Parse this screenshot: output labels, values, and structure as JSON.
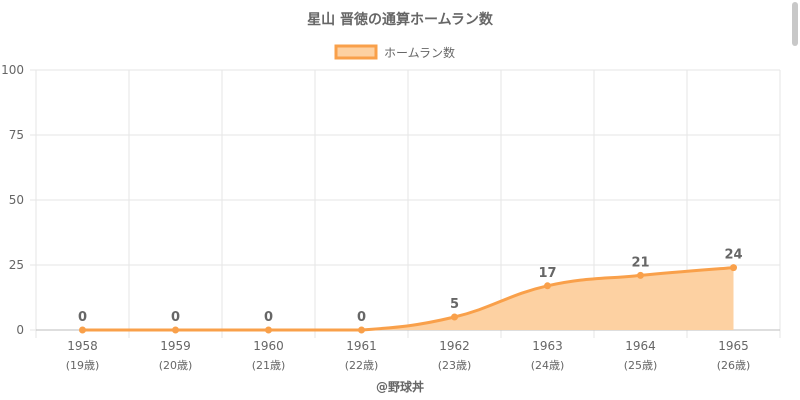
{
  "chart_data": {
    "type": "area",
    "title": "星山 晋徳の通算ホームラン数",
    "legend": {
      "label": "ホームラン数",
      "position": "top"
    },
    "categories": [
      "1958",
      "1959",
      "1960",
      "1961",
      "1962",
      "1963",
      "1964",
      "1965"
    ],
    "category_sublabels": [
      "(19歳)",
      "(20歳)",
      "(21歳)",
      "(22歳)",
      "(23歳)",
      "(24歳)",
      "(25歳)",
      "(26歳)"
    ],
    "series": [
      {
        "name": "ホームラン数",
        "values": [
          0,
          0,
          0,
          0,
          5,
          17,
          21,
          24
        ]
      }
    ],
    "ylim": [
      0,
      100
    ],
    "yticks": [
      "0",
      "25",
      "50",
      "75",
      "100"
    ],
    "grid": true,
    "colors": {
      "line": "#f9a04a",
      "fill": "#fdd1a2",
      "grid": "#e6e6e6",
      "text": "#666666"
    },
    "footer": "@野球丼"
  }
}
